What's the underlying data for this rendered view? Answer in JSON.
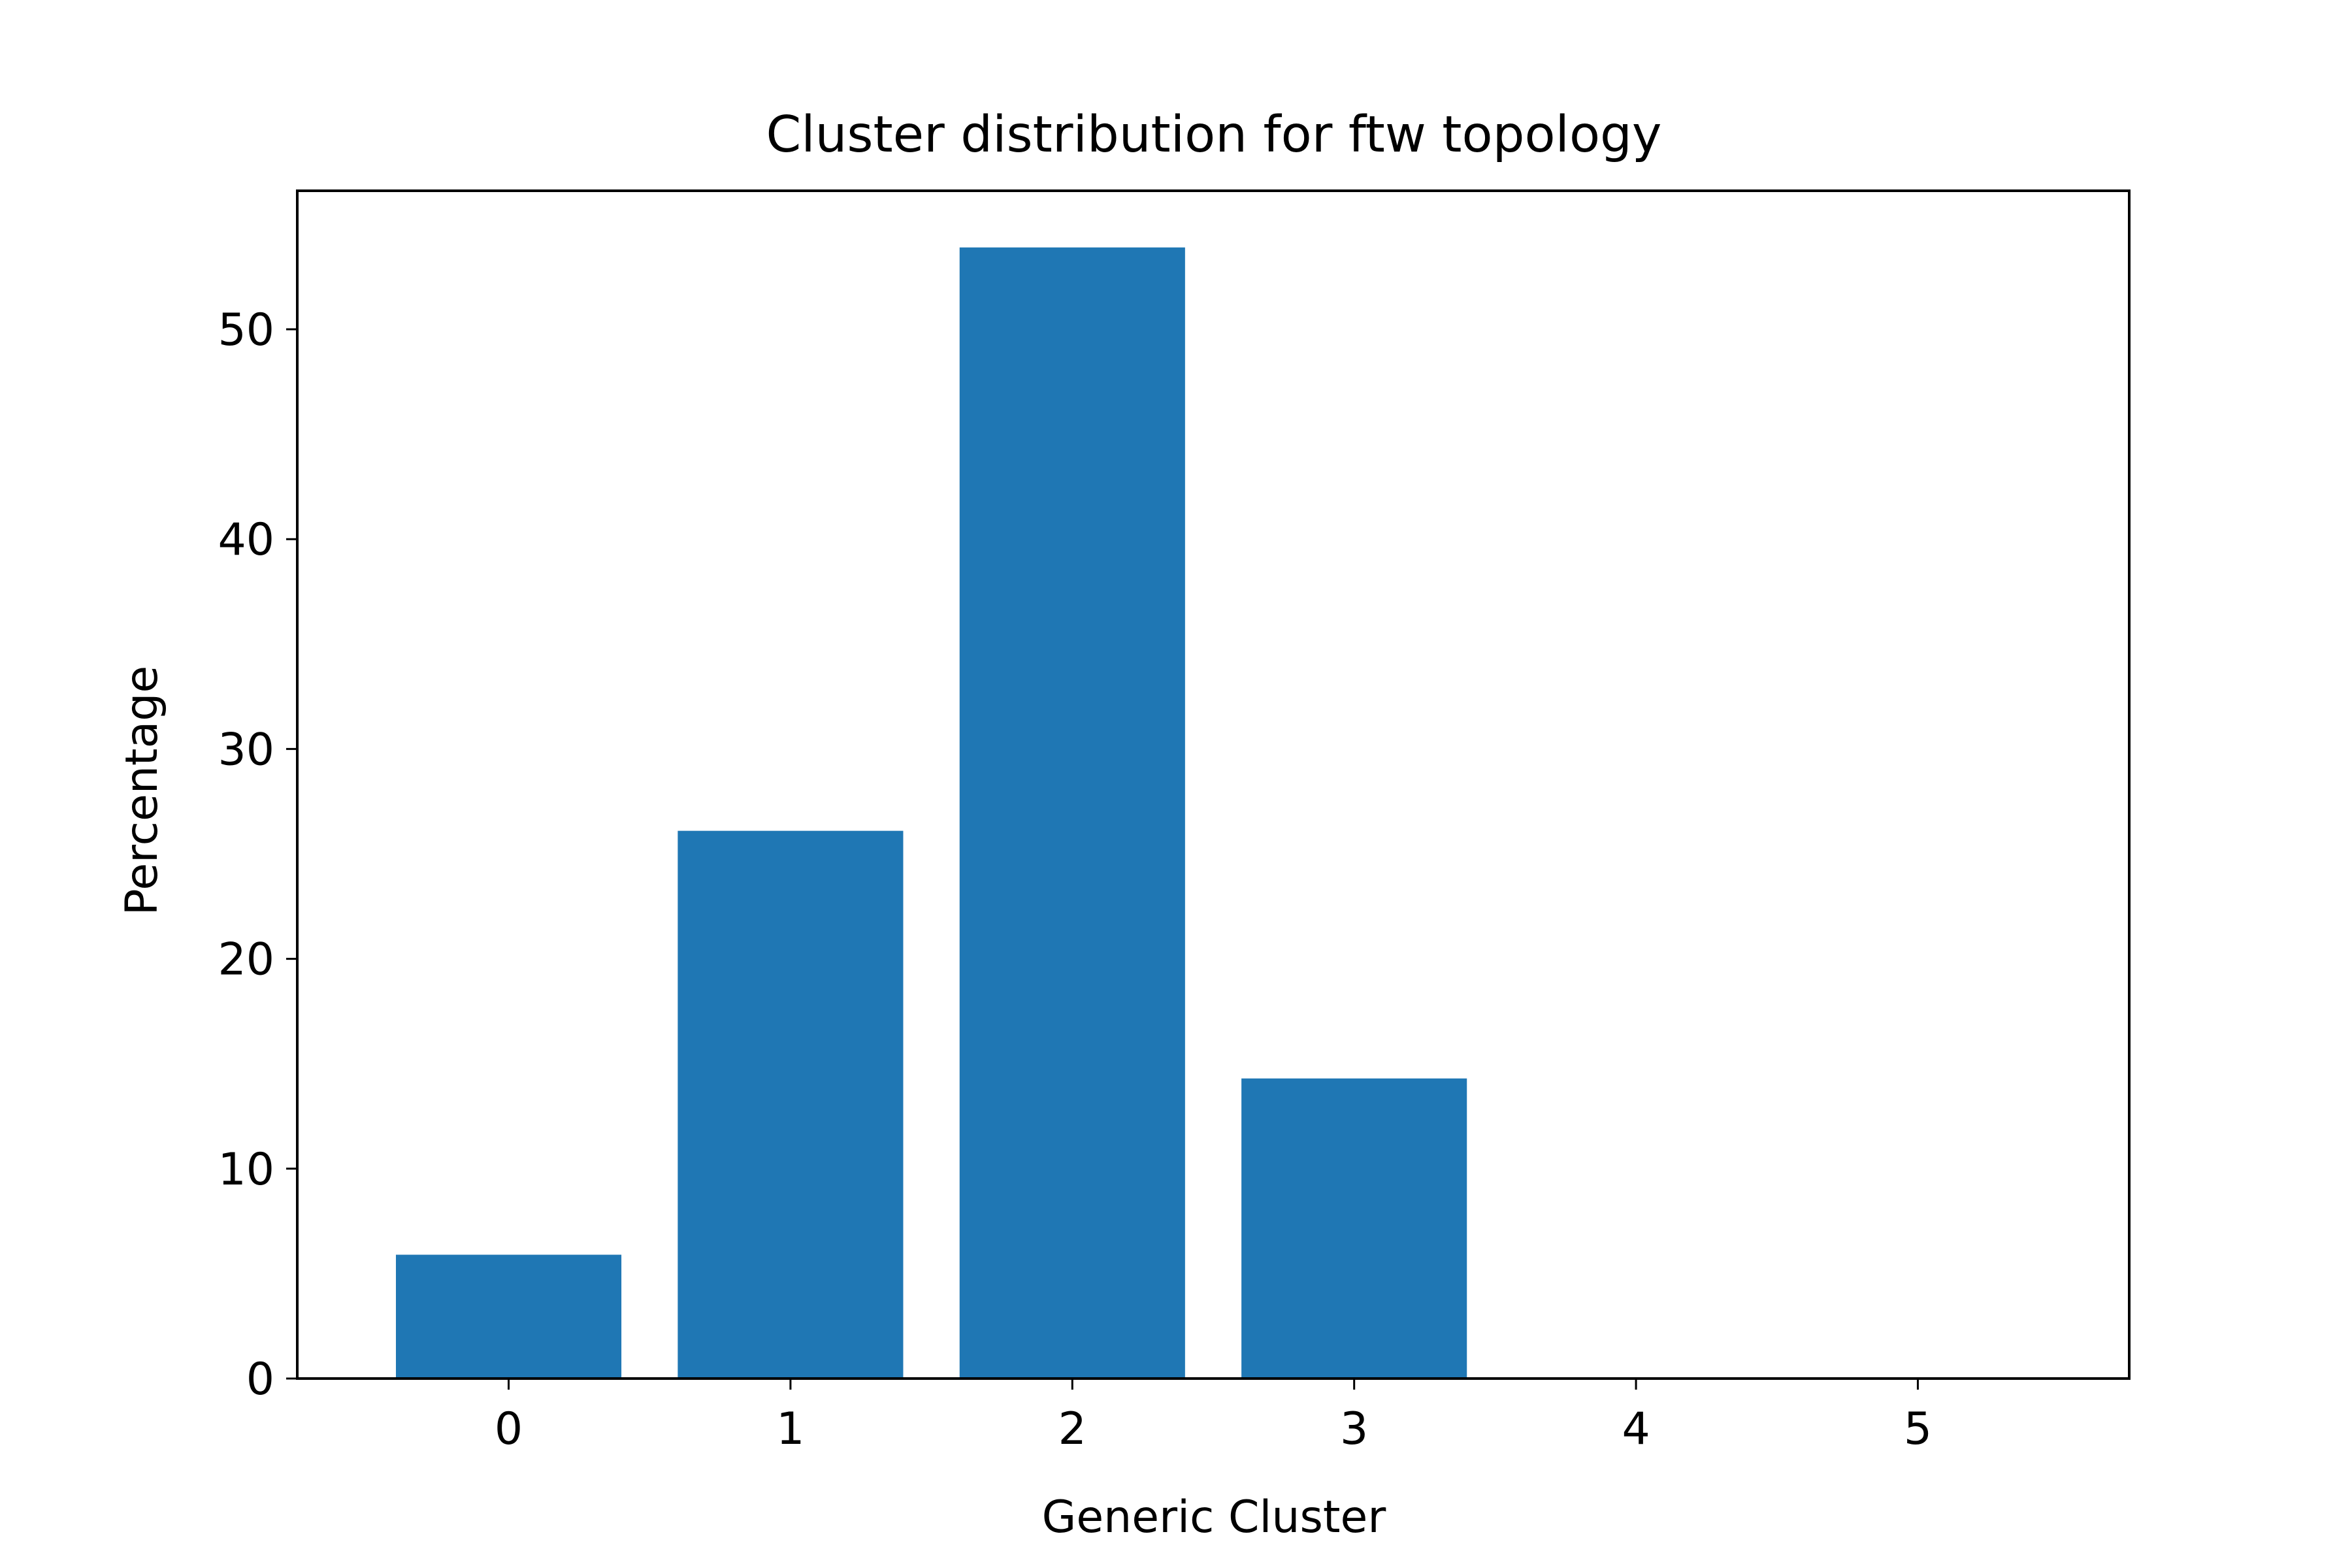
{
  "chart_data": {
    "type": "bar",
    "title": "Cluster distribution for ftw topology",
    "xlabel": "Generic Cluster",
    "ylabel": "Percentage",
    "categories": [
      "0",
      "1",
      "2",
      "3",
      "4",
      "5"
    ],
    "values": [
      5.9,
      26.1,
      53.9,
      14.3,
      0,
      0
    ],
    "ylim": [
      0,
      56.6
    ],
    "yticks": [
      0,
      10,
      20,
      30,
      40,
      50
    ],
    "grid": false,
    "colors": {
      "bar": "#1f77b4",
      "axis": "#000000",
      "background": "#ffffff"
    }
  }
}
